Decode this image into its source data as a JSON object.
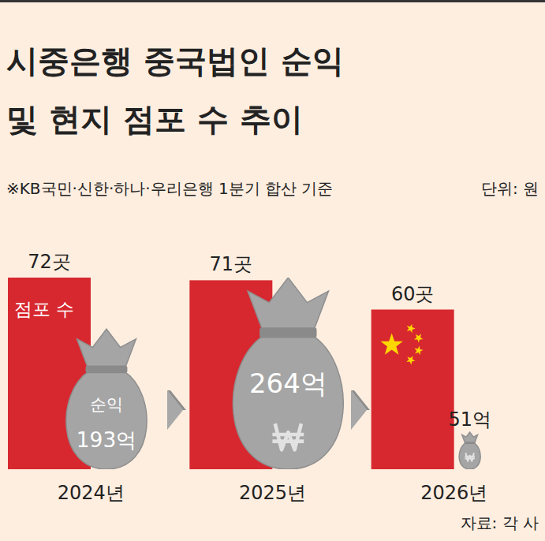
{
  "chart_data": {
    "type": "bar",
    "title": "시중은행 중국법인 순익 및 현지 점포 수 추이",
    "subtitle": "※KB국민·신한·하나·우리은행 1분기 합산 기준",
    "annotations": [
      "단위: 원",
      "자료: 각 사"
    ],
    "categories": [
      "2024년",
      "2025년",
      "2026년"
    ],
    "series": [
      {
        "name": "점포 수",
        "type": "bar",
        "color": "#d7282f",
        "values": [
          72,
          71,
          60
        ],
        "value_labels": [
          "72곳",
          "71곳",
          "60곳"
        ]
      },
      {
        "name": "순익",
        "type": "money_bag",
        "axis": "y2",
        "color": "#a5a5a5",
        "values": [
          193,
          264,
          51
        ],
        "value_labels": [
          "193억",
          "264억",
          "51억"
        ]
      }
    ],
    "ylim": [
      0,
      72
    ],
    "y2lim": [
      0,
      264
    ],
    "tick_labels": "x",
    "data_labels": true,
    "grid": false
  }
}
